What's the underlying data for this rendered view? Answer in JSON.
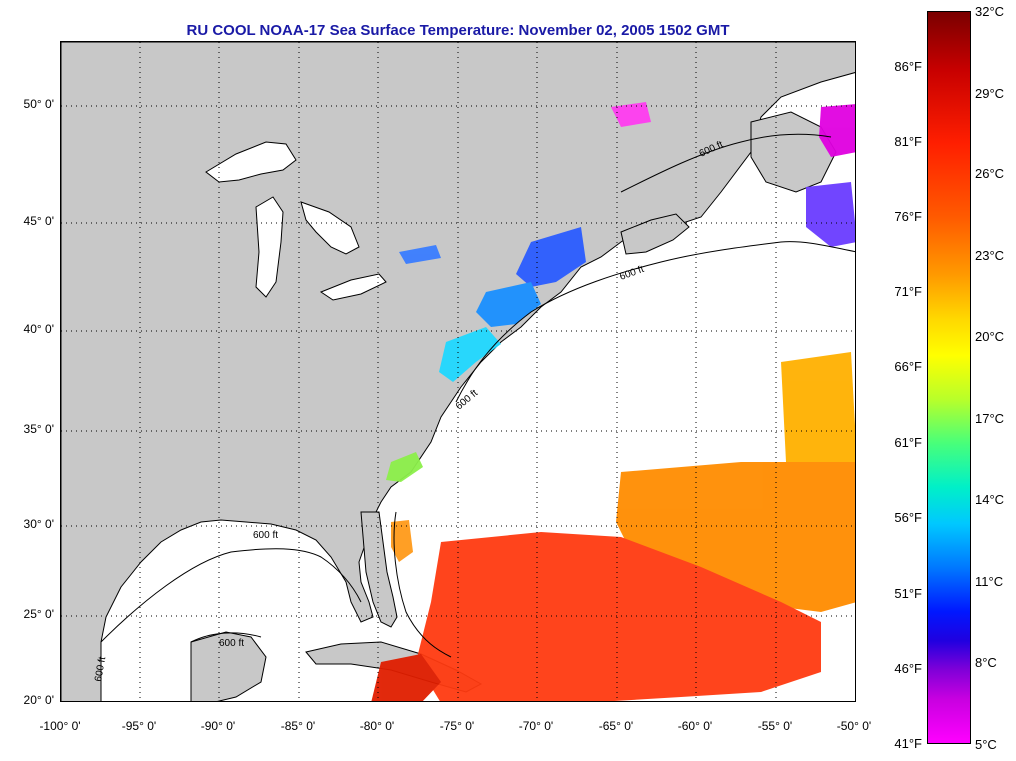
{
  "title": "RU COOL  NOAA-17  Sea Surface Temperature:  November 02, 2005 1502 GMT",
  "map": {
    "lat_labels": [
      "50° 0'",
      "45° 0'",
      "40° 0'",
      "35° 0'",
      "30° 0'",
      "25° 0'",
      "20° 0'"
    ],
    "lon_labels": [
      "-100° 0'",
      "-95° 0'",
      "-90° 0'",
      "-85° 0'",
      "-80° 0'",
      "-75° 0'",
      "-70° 0'",
      "-65° 0'",
      "-60° 0'",
      "-55° 0'",
      "-50° 0'"
    ],
    "isobath_labels": [
      "600 ft",
      "600 ft",
      "600 ft",
      "600 ft",
      "600 ft",
      "600 ft"
    ],
    "land_color": "#c8c8c8",
    "water_color": "#ffffff"
  },
  "colorbar": {
    "fahrenheit": [
      "86°F",
      "81°F",
      "76°F",
      "71°F",
      "66°F",
      "61°F",
      "56°F",
      "51°F",
      "46°F",
      "41°F"
    ],
    "celsius": [
      "32°C",
      "29°C",
      "26°C",
      "23°C",
      "20°C",
      "17°C",
      "14°C",
      "11°C",
      "8°C",
      "5°C"
    ]
  }
}
